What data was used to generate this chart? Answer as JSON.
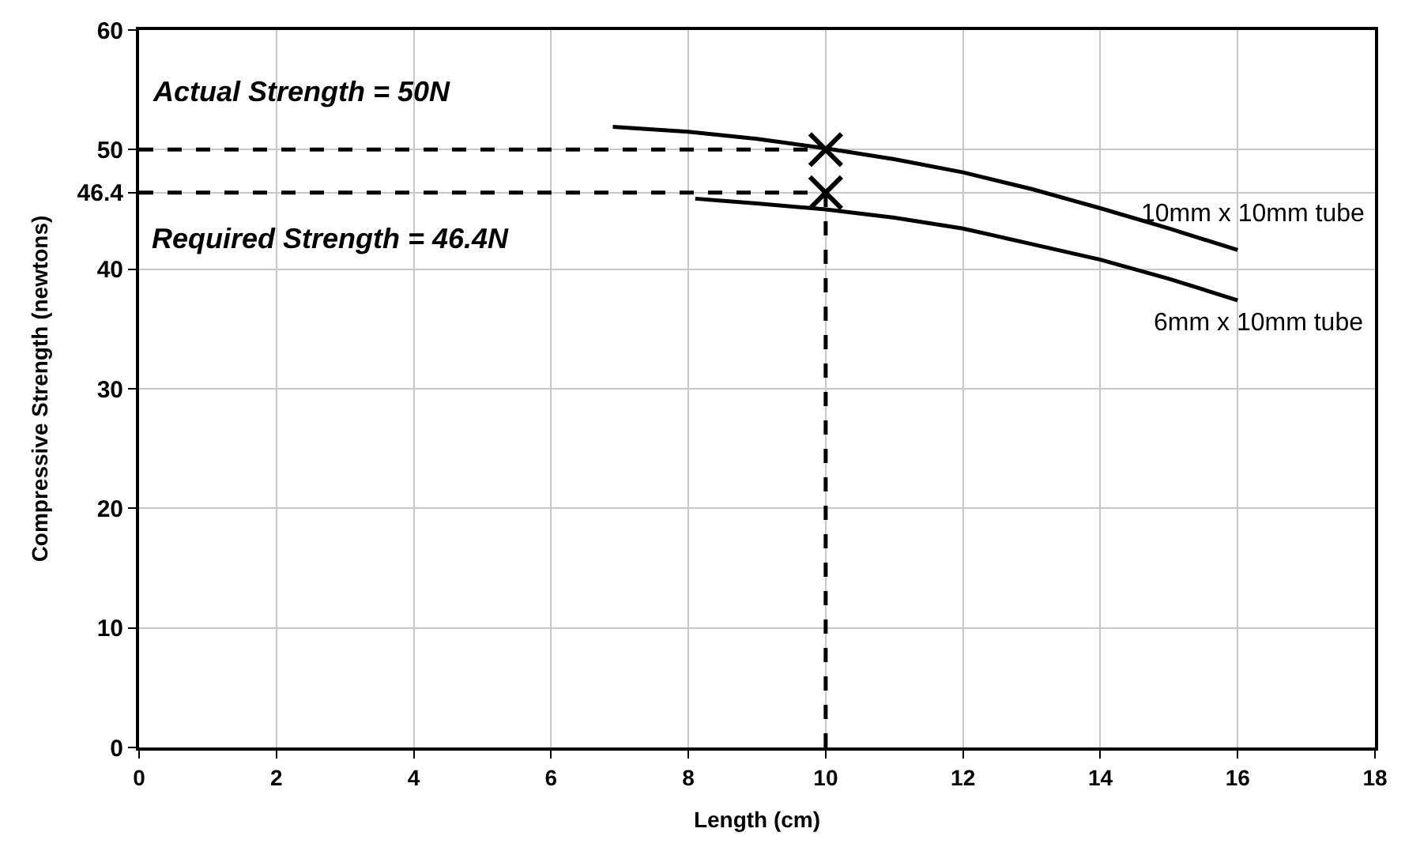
{
  "chart_data": {
    "type": "line",
    "xlabel": "Length (cm)",
    "ylabel": "Compressive Strength (newtons)",
    "xlim": [
      0,
      18
    ],
    "xticks": [
      0,
      2,
      4,
      6,
      8,
      10,
      12,
      14,
      16,
      18
    ],
    "ylim": [
      0,
      60
    ],
    "yticks": [
      0,
      10,
      20,
      30,
      40,
      46.4,
      50,
      60
    ],
    "grid": true,
    "legend": false,
    "annotations": [
      "Actual Strength = 50N",
      "Required Strength = 46.4N"
    ],
    "series": [
      {
        "name": "10mm x 10mm tube",
        "color": "#000000",
        "x": [
          6.9,
          8,
          9,
          10,
          11,
          12,
          13,
          14,
          15,
          16
        ],
        "values": [
          51.9,
          51.5,
          50.9,
          50.1,
          49.2,
          48.1,
          46.7,
          45.1,
          43.4,
          41.6
        ]
      },
      {
        "name": "6mm x 10mm tube",
        "color": "#000000",
        "x": [
          8.1,
          9,
          10,
          11,
          12,
          13,
          14,
          15,
          16
        ],
        "values": [
          45.9,
          45.5,
          45.0,
          44.3,
          43.4,
          42.1,
          40.8,
          39.2,
          37.4
        ]
      },
      {
        "color": "#000000",
        "line_style": "dashed",
        "x": [
          0,
          10
        ],
        "values": [
          50,
          50
        ]
      },
      {
        "color": "#000000",
        "line_style": "dashed",
        "x": [
          0,
          10
        ],
        "values": [
          46.4,
          46.4
        ]
      },
      {
        "color": "#000000",
        "line_style": "dashed",
        "x": [
          10,
          10
        ],
        "values": [
          0,
          46.4
        ]
      },
      {
        "type": "scatter",
        "marker": "cross",
        "color": "#000000",
        "x": [
          10,
          10
        ],
        "values": [
          50,
          46.4
        ]
      }
    ]
  }
}
